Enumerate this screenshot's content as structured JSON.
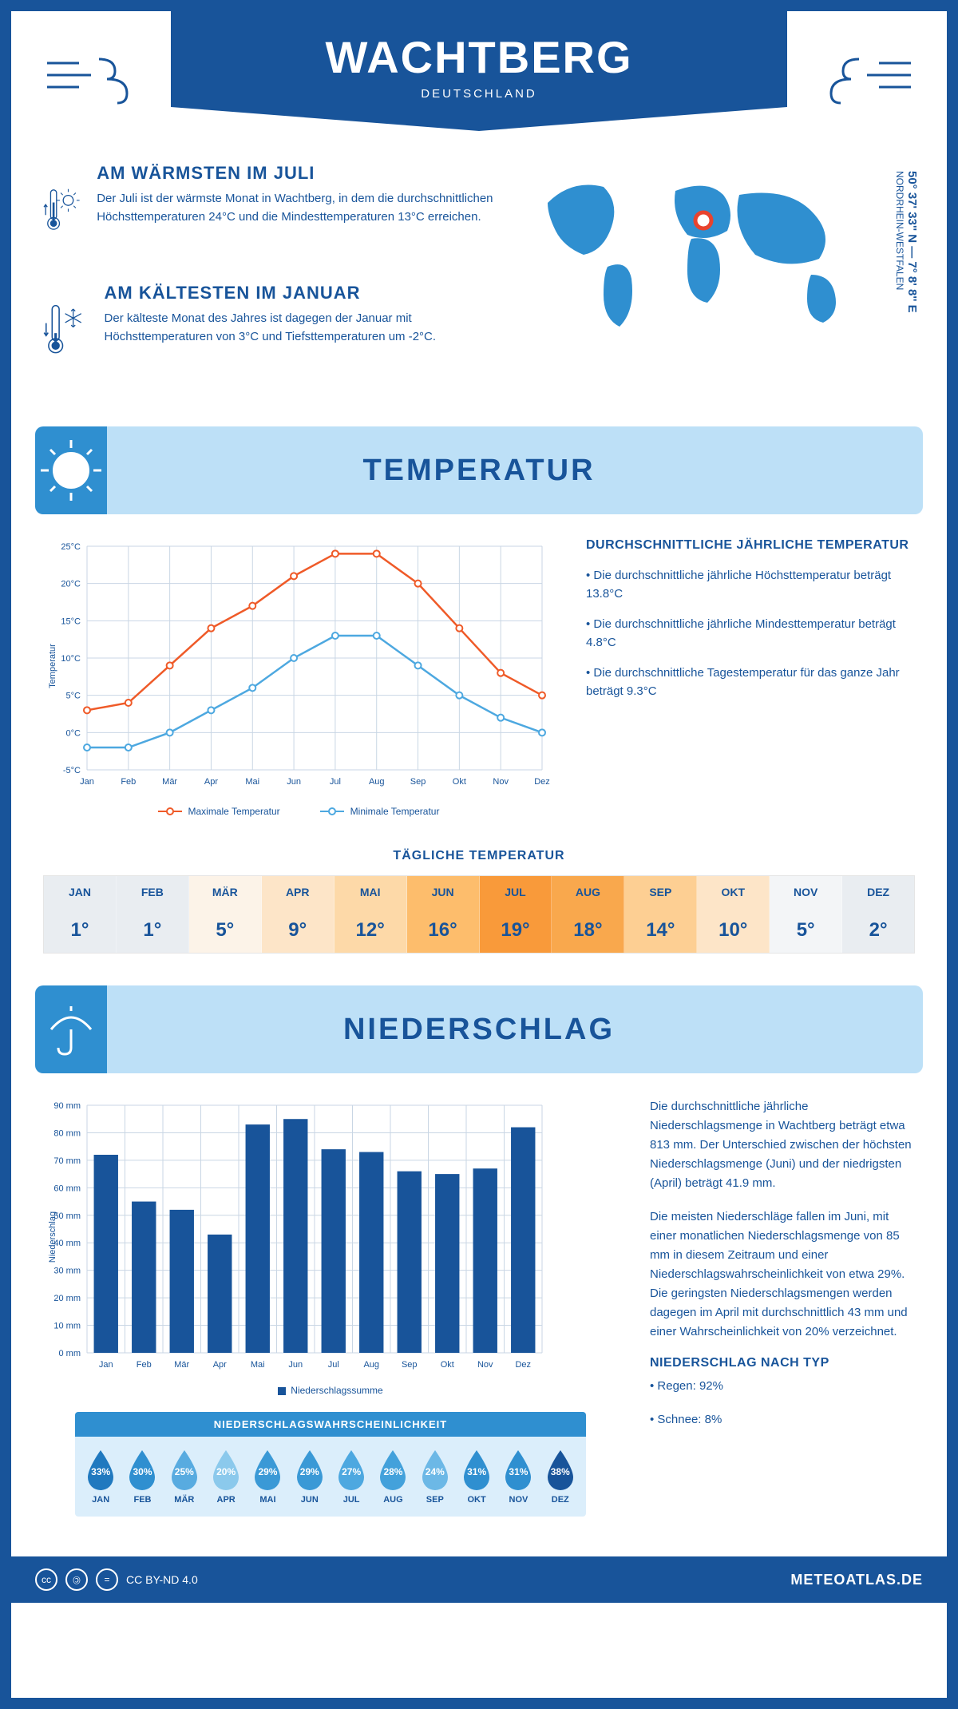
{
  "header": {
    "city": "WACHTBERG",
    "country": "DEUTSCHLAND"
  },
  "coords": {
    "main": "50° 37' 33'' N — 7° 8' 8'' E",
    "region": "NORDRHEIN-WESTFALEN"
  },
  "intro": {
    "warm": {
      "title": "AM WÄRMSTEN IM JULI",
      "text": "Der Juli ist der wärmste Monat in Wachtberg, in dem die durchschnittlichen Höchsttemperaturen 24°C und die Mindesttemperaturen 13°C erreichen."
    },
    "cold": {
      "title": "AM KÄLTESTEN IM JANUAR",
      "text": "Der kälteste Monat des Jahres ist dagegen der Januar mit Höchsttemperaturen von 3°C und Tiefsttemperaturen um -2°C."
    }
  },
  "sections": {
    "temperature": "TEMPERATUR",
    "precipitation": "NIEDERSCHLAG"
  },
  "temp_chart": {
    "type": "line",
    "months": [
      "Jan",
      "Feb",
      "Mär",
      "Apr",
      "Mai",
      "Jun",
      "Jul",
      "Aug",
      "Sep",
      "Okt",
      "Nov",
      "Dez"
    ],
    "max_series": [
      3,
      4,
      9,
      14,
      17,
      21,
      24,
      24,
      20,
      14,
      8,
      5
    ],
    "min_series": [
      -2,
      -2,
      0,
      3,
      6,
      10,
      13,
      13,
      9,
      5,
      2,
      0
    ],
    "max_color": "#ef5a28",
    "min_color": "#4da8e0",
    "ylim": [
      -5,
      25
    ],
    "ytick_step": 5,
    "ylabel": "Temperatur",
    "grid_color": "#c9d6e4",
    "background": "#ffffff",
    "legend": {
      "max": "Maximale Temperatur",
      "min": "Minimale Temperatur"
    }
  },
  "temp_side": {
    "title": "DURCHSCHNITTLICHE JÄHRLICHE TEMPERATUR",
    "bullets": [
      "• Die durchschnittliche jährliche Höchsttemperatur beträgt 13.8°C",
      "• Die durchschnittliche jährliche Mindesttemperatur beträgt 4.8°C",
      "• Die durchschnittliche Tagestemperatur für das ganze Jahr beträgt 9.3°C"
    ]
  },
  "daily": {
    "title": "TÄGLICHE TEMPERATUR",
    "months": [
      "JAN",
      "FEB",
      "MÄR",
      "APR",
      "MAI",
      "JUN",
      "JUL",
      "AUG",
      "SEP",
      "OKT",
      "NOV",
      "DEZ"
    ],
    "values": [
      "1°",
      "1°",
      "5°",
      "9°",
      "12°",
      "16°",
      "19°",
      "18°",
      "14°",
      "10°",
      "5°",
      "2°"
    ],
    "colors": [
      "#e9edf1",
      "#e9edf1",
      "#fcf3e8",
      "#fde5c8",
      "#fdd9a8",
      "#fdbd6c",
      "#f99a3a",
      "#f9a84d",
      "#fdcf93",
      "#fde5c8",
      "#f3f5f7",
      "#e9edf1"
    ]
  },
  "bar_chart": {
    "type": "bar",
    "months": [
      "Jan",
      "Feb",
      "Mär",
      "Apr",
      "Mai",
      "Jun",
      "Jul",
      "Aug",
      "Sep",
      "Okt",
      "Nov",
      "Dez"
    ],
    "values": [
      72,
      55,
      52,
      43,
      83,
      85,
      74,
      73,
      66,
      65,
      67,
      82
    ],
    "bar_color": "#18549a",
    "ylim": [
      0,
      90
    ],
    "ytick_step": 10,
    "ylabel": "Niederschlag",
    "grid_color": "#c9d6e4",
    "legend": "Niederschlagssumme"
  },
  "precip_text": {
    "p1": "Die durchschnittliche jährliche Niederschlagsmenge in Wachtberg beträgt etwa 813 mm. Der Unterschied zwischen der höchsten Niederschlagsmenge (Juni) und der niedrigsten (April) beträgt 41.9 mm.",
    "p2": "Die meisten Niederschläge fallen im Juni, mit einer monatlichen Niederschlagsmenge von 85 mm in diesem Zeitraum und einer Niederschlagswahrscheinlichkeit von etwa 29%. Die geringsten Niederschlagsmengen werden dagegen im April mit durchschnittlich 43 mm und einer Wahrscheinlichkeit von 20% verzeichnet.",
    "type_title": "NIEDERSCHLAG NACH TYP",
    "type1": "• Regen: 92%",
    "type2": "• Schnee: 8%"
  },
  "prob": {
    "title": "NIEDERSCHLAGSWAHRSCHEINLICHKEIT",
    "months": [
      "JAN",
      "FEB",
      "MÄR",
      "APR",
      "MAI",
      "JUN",
      "JUL",
      "AUG",
      "SEP",
      "OKT",
      "NOV",
      "DEZ"
    ],
    "values": [
      "33%",
      "30%",
      "25%",
      "20%",
      "29%",
      "29%",
      "27%",
      "28%",
      "24%",
      "31%",
      "31%",
      "38%"
    ],
    "colors": [
      "#2079bf",
      "#2f8fd0",
      "#58abe0",
      "#8bc9ec",
      "#3a99d6",
      "#3a99d6",
      "#4da8e0",
      "#43a1db",
      "#6cb8e6",
      "#2f8fd0",
      "#2f8fd0",
      "#18549a"
    ]
  },
  "footer": {
    "license": "CC BY-ND 4.0",
    "site": "METEOATLAS.DE"
  }
}
